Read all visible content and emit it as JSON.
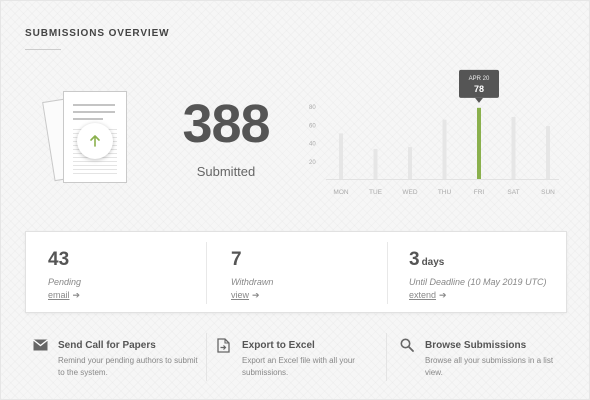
{
  "header": {
    "title": "SUBMISSIONS OVERVIEW"
  },
  "summary": {
    "total": "388",
    "label": "Submitted"
  },
  "chart_data": {
    "type": "bar",
    "categories": [
      "MON",
      "TUE",
      "WED",
      "THU",
      "FRI",
      "SAT",
      "SUN"
    ],
    "values": [
      50,
      33,
      35,
      65,
      78,
      68,
      58
    ],
    "yticks": [
      20,
      40,
      60,
      80
    ],
    "ylim": [
      0,
      90
    ],
    "highlight_index": 4,
    "tooltip": {
      "date": "APR 20",
      "value": "78"
    },
    "colors": {
      "bar": "#e6e6e6",
      "highlight": "#8ab04d",
      "tooltip": "#555555"
    }
  },
  "stats": [
    {
      "value": "43",
      "unit": "",
      "label": "Pending",
      "link": "email"
    },
    {
      "value": "7",
      "unit": "",
      "label": "Withdrawn",
      "link": "view"
    },
    {
      "value": "3",
      "unit": "days",
      "label": "Until Deadline (10 May 2019 UTC)",
      "link": "extend"
    }
  ],
  "actions": [
    {
      "icon": "envelope-icon",
      "title": "Send Call for Papers",
      "desc": "Remind your pending authors to submit to the system."
    },
    {
      "icon": "file-export-icon",
      "title": "Export to Excel",
      "desc": "Export an Excel file with all your submissions."
    },
    {
      "icon": "search-icon",
      "title": "Browse Submissions",
      "desc": "Browse all your submissions in a list view."
    }
  ],
  "icons": {
    "arrow": "➔"
  },
  "colors": {
    "accent": "#8ab04d",
    "text": "#555555"
  }
}
